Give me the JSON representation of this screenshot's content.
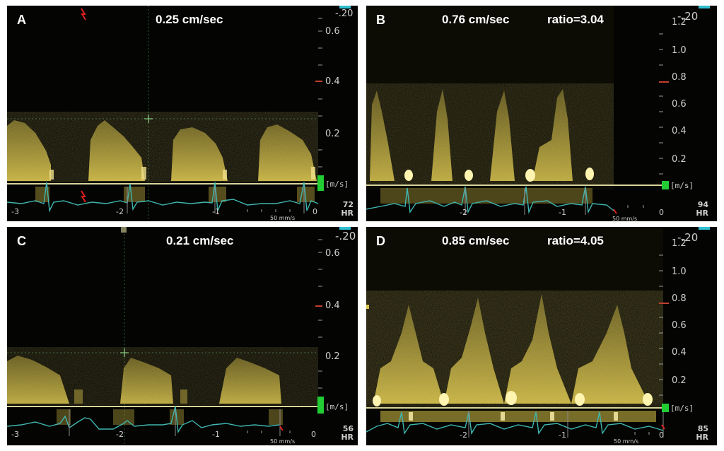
{
  "panels": {
    "A": {
      "letter": "A",
      "velocity": "0.25 cm/sec",
      "ratio": "",
      "scale": [
        "-.20",
        "0.6",
        "0.4",
        "0.2"
      ],
      "unit": "[m/s]",
      "x_ticks": [
        "-3",
        "-2",
        "-1",
        "0"
      ],
      "hr_value": "72",
      "hr_label": "HR",
      "speed": "50 mm/s"
    },
    "B": {
      "letter": "B",
      "velocity": "0.76 cm/sec",
      "ratio": "ratio=3.04",
      "scale": [
        "-.20",
        "1.2",
        "1.0",
        "0.8",
        "0.6",
        "0.4",
        "0.2"
      ],
      "unit": "[m/s]",
      "x_ticks": [
        "-2",
        "-1",
        "0"
      ],
      "hr_value": "94",
      "hr_label": "HR",
      "speed": "50 mm/s"
    },
    "C": {
      "letter": "C",
      "velocity": "0.21 cm/sec",
      "ratio": "",
      "scale": [
        "-.20",
        "0.6",
        "0.4",
        "0.2"
      ],
      "unit": "[m/s]",
      "x_ticks": [
        "-3",
        "-2",
        "-1",
        "0"
      ],
      "hr_value": "56",
      "hr_label": "HR",
      "speed": "50 mm/s"
    },
    "D": {
      "letter": "D",
      "velocity": "0.85 cm/sec",
      "ratio": "ratio=4.05",
      "scale": [
        "-.20",
        "1.2",
        "1.0",
        "0.8",
        "0.6",
        "0.4",
        "0.2"
      ],
      "unit": "[m/s]",
      "x_ticks": [
        "-2",
        "-1",
        "0"
      ],
      "hr_value": "85",
      "hr_label": "HR",
      "speed": "50 mm/s"
    }
  },
  "colors": {
    "doppler": "#c9b43c",
    "ecg": "#3fb6b0",
    "baseline": "#d8d39a",
    "marker": "#22cc33",
    "panel_bg": "#040402"
  }
}
